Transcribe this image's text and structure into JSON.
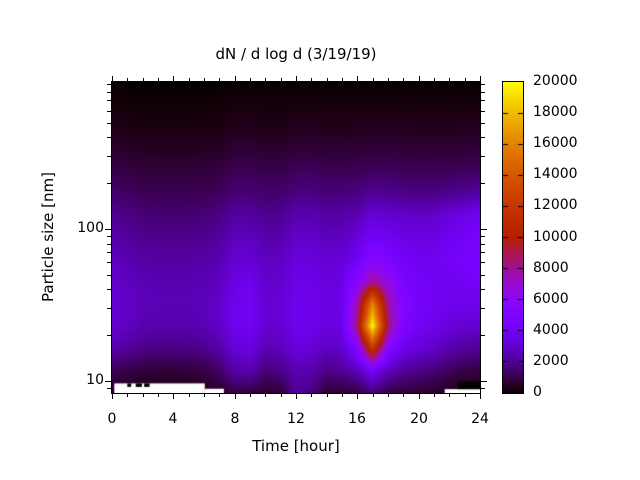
{
  "figure": {
    "title": "dN / d log d (3/19/19)",
    "background": "#ffffff",
    "foreground": "#000000"
  },
  "axes": {
    "xlabel": "Time [hour]",
    "ylabel": "Particle size [nm]",
    "x": {
      "min": 0,
      "max": 24,
      "major_ticks": [
        0,
        4,
        8,
        12,
        16,
        20,
        24
      ],
      "minor_step": 1
    },
    "y": {
      "scale": "log",
      "min": 8.3,
      "max": 925,
      "major_ticks": [
        10,
        100
      ],
      "minor_ticks": [
        9,
        20,
        30,
        40,
        50,
        60,
        70,
        80,
        90,
        200,
        300,
        400,
        500,
        600,
        700,
        800,
        900
      ]
    }
  },
  "colorbar": {
    "min": 0,
    "max": 20000,
    "tick_step": 2000,
    "tick_labels": [
      "0",
      "2000",
      "4000",
      "6000",
      "8000",
      "10000",
      "12000",
      "14000",
      "16000",
      "18000",
      "20000"
    ],
    "palette": "gnuplot-pm3d-rgbformulae-7-5-15",
    "palette_samples": {
      "0": "#000000",
      "5000": "#8004ff",
      "10000": "#b42000",
      "15000": "#dc6c00",
      "20000": "#ffff00"
    }
  },
  "chart_data": {
    "type": "heatmap",
    "title": "dN / d log d (3/19/19)",
    "xlabel": "Time [hour]",
    "ylabel": "Particle size [nm]",
    "x_hours": [
      0,
      1,
      2,
      3,
      4,
      5,
      6,
      7,
      8,
      9,
      10,
      11,
      12,
      13,
      14,
      15,
      16,
      17,
      18,
      19,
      20,
      21,
      22,
      23,
      24
    ],
    "y_sizes_nm_top_to_bottom": [
      920,
      660,
      470,
      335,
      240,
      172,
      123,
      88,
      63,
      45,
      32,
      23,
      16,
      11.7,
      8.3
    ],
    "zmax": 20000,
    "values": [
      [
        0,
        0,
        0,
        0,
        0,
        0,
        0,
        0,
        0,
        0,
        0,
        0,
        0,
        0,
        0,
        0,
        0,
        0,
        0,
        0,
        0,
        0,
        0,
        0,
        0
      ],
      [
        120,
        100,
        80,
        80,
        80,
        80,
        80,
        100,
        150,
        150,
        120,
        120,
        160,
        160,
        140,
        140,
        150,
        160,
        160,
        150,
        140,
        140,
        140,
        150,
        150
      ],
      [
        280,
        240,
        200,
        190,
        190,
        190,
        200,
        230,
        330,
        330,
        280,
        280,
        360,
        360,
        320,
        320,
        340,
        360,
        360,
        350,
        330,
        330,
        330,
        340,
        350
      ],
      [
        550,
        480,
        420,
        400,
        400,
        400,
        420,
        470,
        640,
        640,
        560,
        560,
        700,
        700,
        630,
        630,
        660,
        700,
        700,
        680,
        650,
        650,
        660,
        680,
        700
      ],
      [
        950,
        850,
        750,
        720,
        720,
        720,
        750,
        820,
        1080,
        1080,
        950,
        950,
        1180,
        1180,
        1080,
        1080,
        1120,
        1200,
        1200,
        1150,
        1100,
        1100,
        1120,
        1180,
        1250
      ],
      [
        1400,
        1250,
        1100,
        1060,
        1060,
        1060,
        1100,
        1200,
        1550,
        1550,
        1380,
        1400,
        1700,
        1700,
        1560,
        1580,
        1650,
        2000,
        1900,
        1800,
        1700,
        1750,
        1850,
        2000,
        2200
      ],
      [
        1950,
        1750,
        1550,
        1500,
        1500,
        1500,
        1550,
        1700,
        2150,
        2150,
        1900,
        1950,
        2400,
        2400,
        2200,
        2250,
        2500,
        3200,
        3000,
        2900,
        2800,
        2950,
        3300,
        3600,
        3900
      ],
      [
        2350,
        2100,
        1900,
        1850,
        1850,
        1850,
        1900,
        2100,
        2650,
        2650,
        2350,
        2400,
        2900,
        2900,
        2650,
        2750,
        3200,
        4200,
        3900,
        3600,
        3400,
        3500,
        3900,
        4200,
        4500
      ],
      [
        2700,
        2450,
        2250,
        2200,
        2200,
        2200,
        2250,
        2450,
        3100,
        3100,
        2700,
        2750,
        3300,
        3300,
        3050,
        3200,
        4000,
        5500,
        4900,
        4300,
        3900,
        3900,
        4200,
        4400,
        4800
      ],
      [
        2950,
        2700,
        2500,
        2450,
        2450,
        2450,
        2500,
        2700,
        3500,
        3800,
        2950,
        3000,
        3600,
        3600,
        3300,
        3500,
        5500,
        8000,
        6500,
        4800,
        4200,
        4000,
        4000,
        4100,
        4300
      ],
      [
        3100,
        2850,
        2600,
        2550,
        2550,
        2550,
        2650,
        2900,
        3800,
        4100,
        3100,
        3200,
        3800,
        3800,
        3450,
        3700,
        7500,
        16000,
        8000,
        5200,
        4400,
        4000,
        3800,
        3700,
        3700
      ],
      [
        3000,
        2750,
        2450,
        2400,
        2400,
        2400,
        2550,
        2850,
        3800,
        4000,
        3000,
        3100,
        3750,
        3700,
        3300,
        3600,
        8500,
        20000,
        8800,
        4900,
        4100,
        3700,
        3300,
        3100,
        3000
      ],
      [
        2400,
        2100,
        1800,
        1700,
        1700,
        1750,
        1900,
        2300,
        3200,
        3400,
        2500,
        2650,
        3300,
        3150,
        2750,
        2950,
        5000,
        12000,
        5500,
        3700,
        3200,
        2900,
        2400,
        2100,
        2000
      ],
      [
        1100,
        900,
        750,
        700,
        700,
        750,
        900,
        1300,
        2300,
        2400,
        1600,
        1800,
        2500,
        2300,
        1800,
        2000,
        2600,
        4200,
        2700,
        2100,
        1800,
        1600,
        1200,
        900,
        800
      ],
      [
        400,
        330,
        270,
        260,
        260,
        280,
        350,
        500,
        900,
        800,
        550,
        650,
        2000,
        1700,
        600,
        680,
        850,
        1500,
        900,
        700,
        600,
        500,
        350,
        250,
        200
      ]
    ],
    "peak": {
      "hour": 17,
      "size_nm": 23,
      "value": 20000
    },
    "missing_data_white": [
      {
        "h0": 0.15,
        "h1": 6.05,
        "s0": 8.3,
        "s1": 9.6
      },
      {
        "h0": 6.05,
        "h1": 7.3,
        "s0": 8.3,
        "s1": 8.85
      },
      {
        "h0": 21.7,
        "h1": 24.0,
        "s0": 8.3,
        "s1": 8.8
      }
    ],
    "zero_patches_black": [
      {
        "h0": 22.55,
        "h1": 24.0,
        "s0": 8.8,
        "s1": 9.9
      },
      {
        "h0": 1.0,
        "h1": 1.25,
        "s0": 9.1,
        "s1": 9.6
      },
      {
        "h0": 1.55,
        "h1": 1.95,
        "s0": 9.1,
        "s1": 9.6
      },
      {
        "h0": 2.1,
        "h1": 2.45,
        "s0": 9.1,
        "s1": 9.6
      }
    ]
  }
}
